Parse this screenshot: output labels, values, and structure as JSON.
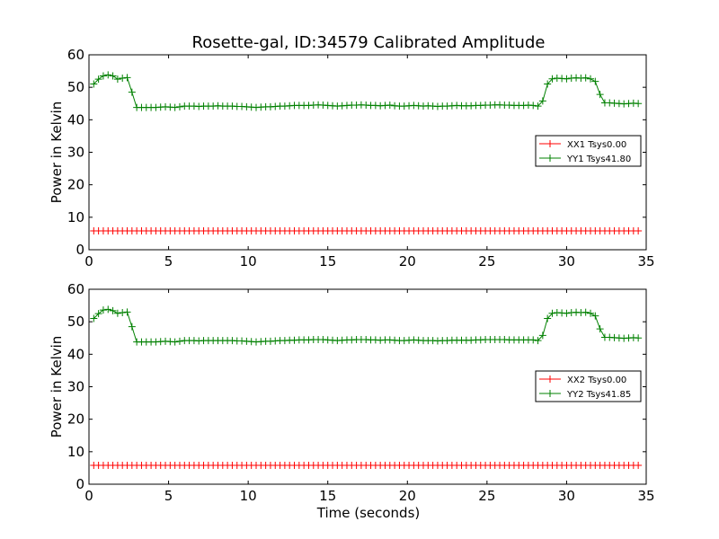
{
  "figure": {
    "title": "Rosette-gal, ID:34579 Calibrated Amplitude",
    "xlabel": "Time (seconds)"
  },
  "chart_data": [
    {
      "type": "line",
      "title": "Rosette-gal, ID:34579 Calibrated Amplitude",
      "xlabel": "",
      "ylabel": "Power in Kelvin",
      "xlim": [
        0,
        35
      ],
      "ylim": [
        0,
        60
      ],
      "xticks": [
        0,
        5,
        10,
        15,
        20,
        25,
        30,
        35
      ],
      "yticks": [
        0,
        10,
        20,
        30,
        40,
        50,
        60
      ],
      "grid": false,
      "legend_position": "right",
      "x": [
        0.3,
        0.6,
        0.9,
        1.2,
        1.5,
        1.8,
        2.1,
        2.4,
        2.7,
        3.0,
        3.3,
        3.6,
        3.9,
        4.2,
        4.5,
        4.8,
        5.1,
        5.4,
        5.7,
        6.0,
        6.3,
        6.6,
        6.9,
        7.2,
        7.5,
        7.8,
        8.1,
        8.4,
        8.7,
        9.0,
        9.3,
        9.6,
        9.9,
        10.2,
        10.5,
        10.8,
        11.1,
        11.4,
        11.7,
        12.0,
        12.3,
        12.6,
        12.9,
        13.2,
        13.5,
        13.8,
        14.1,
        14.4,
        14.7,
        15.0,
        15.3,
        15.6,
        15.9,
        16.2,
        16.5,
        16.8,
        17.1,
        17.4,
        17.7,
        18.0,
        18.3,
        18.6,
        18.9,
        19.2,
        19.5,
        19.8,
        20.1,
        20.4,
        20.7,
        21.0,
        21.3,
        21.6,
        21.9,
        22.2,
        22.5,
        22.8,
        23.1,
        23.4,
        23.7,
        24.0,
        24.3,
        24.6,
        24.9,
        25.2,
        25.5,
        25.8,
        26.1,
        26.4,
        26.7,
        27.0,
        27.3,
        27.6,
        27.9,
        28.2,
        28.5,
        28.8,
        29.1,
        29.4,
        29.7,
        30.0,
        30.3,
        30.6,
        30.9,
        31.2,
        31.5,
        31.8,
        32.1,
        32.4,
        32.7,
        33.0,
        33.3,
        33.6,
        33.9,
        34.2,
        34.5
      ],
      "series": [
        {
          "name": "XX1 Tsys0.00",
          "color": "#ff0000",
          "values": [
            5.8,
            5.8,
            5.8,
            5.8,
            5.8,
            5.8,
            5.8,
            5.8,
            5.8,
            5.8,
            5.8,
            5.8,
            5.8,
            5.8,
            5.8,
            5.8,
            5.8,
            5.8,
            5.8,
            5.8,
            5.8,
            5.8,
            5.8,
            5.8,
            5.8,
            5.8,
            5.8,
            5.8,
            5.8,
            5.8,
            5.8,
            5.8,
            5.8,
            5.8,
            5.8,
            5.8,
            5.8,
            5.8,
            5.8,
            5.8,
            5.8,
            5.8,
            5.8,
            5.8,
            5.8,
            5.8,
            5.8,
            5.8,
            5.8,
            5.8,
            5.8,
            5.8,
            5.8,
            5.8,
            5.8,
            5.8,
            5.8,
            5.8,
            5.8,
            5.8,
            5.8,
            5.8,
            5.8,
            5.8,
            5.8,
            5.8,
            5.8,
            5.8,
            5.8,
            5.8,
            5.8,
            5.8,
            5.8,
            5.8,
            5.8,
            5.8,
            5.8,
            5.8,
            5.8,
            5.8,
            5.8,
            5.8,
            5.8,
            5.8,
            5.8,
            5.8,
            5.8,
            5.8,
            5.8,
            5.8,
            5.8,
            5.8,
            5.8,
            5.8,
            5.8,
            5.8,
            5.8,
            5.8,
            5.8,
            5.8,
            5.8,
            5.8,
            5.8,
            5.8,
            5.8,
            5.8,
            5.8,
            5.8,
            5.8,
            5.8,
            5.8,
            5.8,
            5.8,
            5.8,
            5.8
          ]
        },
        {
          "name": "YY1 Tsys41.80",
          "color": "#008000",
          "values": [
            51.0,
            52.5,
            53.5,
            53.8,
            53.5,
            52.5,
            52.8,
            53.0,
            48.5,
            43.8,
            43.8,
            43.8,
            43.8,
            43.8,
            43.9,
            44.0,
            43.9,
            43.8,
            44.0,
            44.2,
            44.2,
            44.2,
            44.1,
            44.2,
            44.2,
            44.2,
            44.3,
            44.2,
            44.2,
            44.2,
            44.1,
            44.1,
            44.0,
            43.9,
            43.8,
            43.9,
            44.0,
            44.0,
            44.1,
            44.2,
            44.2,
            44.3,
            44.4,
            44.4,
            44.4,
            44.4,
            44.5,
            44.6,
            44.5,
            44.4,
            44.3,
            44.2,
            44.3,
            44.4,
            44.5,
            44.5,
            44.6,
            44.5,
            44.4,
            44.4,
            44.3,
            44.4,
            44.5,
            44.3,
            44.2,
            44.2,
            44.3,
            44.4,
            44.3,
            44.2,
            44.3,
            44.2,
            44.1,
            44.2,
            44.2,
            44.3,
            44.4,
            44.3,
            44.3,
            44.3,
            44.4,
            44.4,
            44.5,
            44.5,
            44.6,
            44.6,
            44.5,
            44.5,
            44.4,
            44.4,
            44.4,
            44.5,
            44.4,
            44.2,
            45.8,
            51.0,
            52.6,
            52.8,
            52.7,
            52.6,
            52.8,
            52.9,
            52.8,
            52.9,
            52.6,
            51.8,
            47.8,
            45.2,
            45.2,
            45.1,
            45.0,
            44.9,
            45.0,
            45.1,
            45.0
          ]
        }
      ]
    },
    {
      "type": "line",
      "title": "",
      "xlabel": "Time (seconds)",
      "ylabel": "Power in Kelvin",
      "xlim": [
        0,
        35
      ],
      "ylim": [
        0,
        60
      ],
      "xticks": [
        0,
        5,
        10,
        15,
        20,
        25,
        30,
        35
      ],
      "yticks": [
        0,
        10,
        20,
        30,
        40,
        50,
        60
      ],
      "grid": false,
      "legend_position": "right",
      "x": [
        0.3,
        0.6,
        0.9,
        1.2,
        1.5,
        1.8,
        2.1,
        2.4,
        2.7,
        3.0,
        3.3,
        3.6,
        3.9,
        4.2,
        4.5,
        4.8,
        5.1,
        5.4,
        5.7,
        6.0,
        6.3,
        6.6,
        6.9,
        7.2,
        7.5,
        7.8,
        8.1,
        8.4,
        8.7,
        9.0,
        9.3,
        9.6,
        9.9,
        10.2,
        10.5,
        10.8,
        11.1,
        11.4,
        11.7,
        12.0,
        12.3,
        12.6,
        12.9,
        13.2,
        13.5,
        13.8,
        14.1,
        14.4,
        14.7,
        15.0,
        15.3,
        15.6,
        15.9,
        16.2,
        16.5,
        16.8,
        17.1,
        17.4,
        17.7,
        18.0,
        18.3,
        18.6,
        18.9,
        19.2,
        19.5,
        19.8,
        20.1,
        20.4,
        20.7,
        21.0,
        21.3,
        21.6,
        21.9,
        22.2,
        22.5,
        22.8,
        23.1,
        23.4,
        23.7,
        24.0,
        24.3,
        24.6,
        24.9,
        25.2,
        25.5,
        25.8,
        26.1,
        26.4,
        26.7,
        27.0,
        27.3,
        27.6,
        27.9,
        28.2,
        28.5,
        28.8,
        29.1,
        29.4,
        29.7,
        30.0,
        30.3,
        30.6,
        30.9,
        31.2,
        31.5,
        31.8,
        32.1,
        32.4,
        32.7,
        33.0,
        33.3,
        33.6,
        33.9,
        34.2,
        34.5
      ],
      "series": [
        {
          "name": "XX2 Tsys0.00",
          "color": "#ff0000",
          "values": [
            5.8,
            5.8,
            5.8,
            5.8,
            5.8,
            5.8,
            5.8,
            5.8,
            5.8,
            5.8,
            5.8,
            5.8,
            5.8,
            5.8,
            5.8,
            5.8,
            5.8,
            5.8,
            5.8,
            5.8,
            5.8,
            5.8,
            5.8,
            5.8,
            5.8,
            5.8,
            5.8,
            5.8,
            5.8,
            5.8,
            5.8,
            5.8,
            5.8,
            5.8,
            5.8,
            5.8,
            5.8,
            5.8,
            5.8,
            5.8,
            5.8,
            5.8,
            5.8,
            5.8,
            5.8,
            5.8,
            5.8,
            5.8,
            5.8,
            5.8,
            5.8,
            5.8,
            5.8,
            5.8,
            5.8,
            5.8,
            5.8,
            5.8,
            5.8,
            5.8,
            5.8,
            5.8,
            5.8,
            5.8,
            5.8,
            5.8,
            5.8,
            5.8,
            5.8,
            5.8,
            5.8,
            5.8,
            5.8,
            5.8,
            5.8,
            5.8,
            5.8,
            5.8,
            5.8,
            5.8,
            5.8,
            5.8,
            5.8,
            5.8,
            5.8,
            5.8,
            5.8,
            5.8,
            5.8,
            5.8,
            5.8,
            5.8,
            5.8,
            5.8,
            5.8,
            5.8,
            5.8,
            5.8,
            5.8,
            5.8,
            5.8,
            5.8,
            5.8,
            5.8,
            5.8,
            5.8,
            5.8,
            5.8,
            5.8,
            5.8,
            5.8,
            5.8,
            5.8,
            5.8,
            5.8
          ]
        },
        {
          "name": "YY2 Tsys41.85",
          "color": "#008000",
          "values": [
            51.0,
            52.5,
            53.6,
            53.8,
            53.4,
            52.6,
            52.8,
            53.0,
            48.5,
            43.8,
            43.8,
            43.8,
            43.8,
            43.8,
            43.9,
            44.0,
            43.9,
            43.8,
            44.0,
            44.2,
            44.2,
            44.2,
            44.1,
            44.2,
            44.2,
            44.2,
            44.2,
            44.2,
            44.2,
            44.2,
            44.1,
            44.1,
            44.0,
            43.9,
            43.8,
            43.9,
            44.0,
            44.0,
            44.1,
            44.2,
            44.2,
            44.3,
            44.3,
            44.4,
            44.4,
            44.4,
            44.5,
            44.5,
            44.5,
            44.4,
            44.3,
            44.2,
            44.3,
            44.4,
            44.4,
            44.5,
            44.5,
            44.5,
            44.4,
            44.4,
            44.3,
            44.4,
            44.4,
            44.3,
            44.2,
            44.2,
            44.3,
            44.4,
            44.3,
            44.2,
            44.2,
            44.2,
            44.1,
            44.2,
            44.2,
            44.3,
            44.3,
            44.3,
            44.3,
            44.3,
            44.4,
            44.4,
            44.5,
            44.5,
            44.5,
            44.5,
            44.5,
            44.4,
            44.4,
            44.4,
            44.4,
            44.4,
            44.4,
            44.2,
            45.8,
            51.0,
            52.6,
            52.8,
            52.7,
            52.6,
            52.8,
            52.9,
            52.8,
            52.9,
            52.6,
            51.8,
            47.8,
            45.2,
            45.2,
            45.1,
            45.0,
            44.9,
            45.0,
            45.1,
            45.0
          ]
        }
      ]
    }
  ]
}
